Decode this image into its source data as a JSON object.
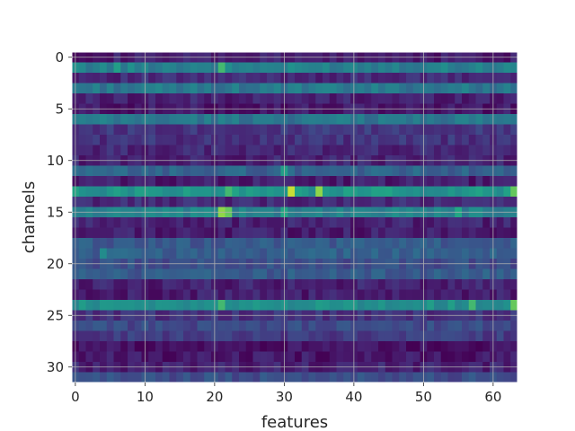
{
  "chart_data": {
    "type": "heatmap",
    "title": "",
    "xlabel": "features",
    "ylabel": "channels",
    "xlim": [
      -0.5,
      63.5
    ],
    "ylim": [
      31.5,
      -0.5
    ],
    "xticks": [
      0,
      10,
      20,
      30,
      40,
      50,
      60
    ],
    "yticks": [
      0,
      5,
      10,
      15,
      20,
      25,
      30
    ],
    "grid": true,
    "colormap": "viridis",
    "vrange": [
      0.0,
      1.0
    ],
    "n_rows": 32,
    "n_cols": 64,
    "row_levels": [
      0.1,
      0.55,
      0.15,
      0.5,
      0.12,
      0.08,
      0.5,
      0.2,
      0.18,
      0.14,
      0.12,
      0.4,
      0.1,
      0.65,
      0.15,
      0.55,
      0.12,
      0.1,
      0.35,
      0.38,
      0.3,
      0.36,
      0.12,
      0.1,
      0.62,
      0.18,
      0.28,
      0.22,
      0.05,
      0.08,
      0.12,
      0.3
    ],
    "highlights": [
      {
        "row": 1,
        "col": 21,
        "value": 0.8
      },
      {
        "row": 1,
        "col": 6,
        "value": 0.7
      },
      {
        "row": 13,
        "col": 31,
        "value": 0.95
      },
      {
        "row": 13,
        "col": 35,
        "value": 0.9
      },
      {
        "row": 13,
        "col": 63,
        "value": 0.85
      },
      {
        "row": 13,
        "col": 22,
        "value": 0.8
      },
      {
        "row": 15,
        "col": 21,
        "value": 0.9
      },
      {
        "row": 15,
        "col": 22,
        "value": 0.85
      },
      {
        "row": 15,
        "col": 30,
        "value": 0.75
      },
      {
        "row": 15,
        "col": 55,
        "value": 0.75
      },
      {
        "row": 11,
        "col": 30,
        "value": 0.7
      },
      {
        "row": 19,
        "col": 4,
        "value": 0.6
      },
      {
        "row": 24,
        "col": 21,
        "value": 0.8
      },
      {
        "row": 24,
        "col": 57,
        "value": 0.8
      },
      {
        "row": 24,
        "col": 63,
        "value": 0.85
      }
    ]
  }
}
